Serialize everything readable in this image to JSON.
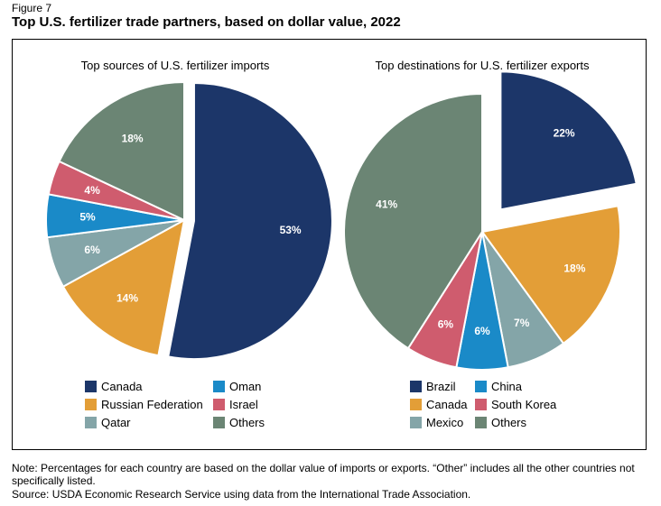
{
  "figure_label": "Figure 7",
  "title": "Top U.S. fertilizer trade partners, based on dollar value, 2022",
  "note": "Note: Percentages for each country are based on the dollar value of imports or exports. “Other” includes all the other countries not specifically listed.",
  "source": "Source: USDA Economic Research Service using data from the International Trade Association.",
  "chart_data": [
    {
      "type": "pie",
      "title": "Top sources of U.S. fertilizer imports",
      "slices": [
        {
          "label": "Canada",
          "value": 53,
          "display": "53%",
          "color": "#1c3669",
          "exploded": true
        },
        {
          "label": "Russian Federation",
          "value": 14,
          "display": "14%",
          "color": "#e39e37",
          "exploded": false
        },
        {
          "label": "Qatar",
          "value": 6,
          "display": "6%",
          "color": "#84a5a8",
          "exploded": false
        },
        {
          "label": "Oman",
          "value": 5,
          "display": "5%",
          "color": "#1a8ac8",
          "exploded": false
        },
        {
          "label": "Israel",
          "value": 4,
          "display": "4%",
          "color": "#cf5c6e",
          "exploded": false
        },
        {
          "label": "Others",
          "value": 18,
          "display": "18%",
          "color": "#6b8574",
          "exploded": false
        }
      ],
      "legend": [
        "Canada",
        "Oman",
        "Russian Federation",
        "Israel",
        "Qatar",
        "Others"
      ]
    },
    {
      "type": "pie",
      "title": "Top destinations for U.S. fertilizer exports",
      "slices": [
        {
          "label": "Brazil",
          "value": 22,
          "display": "22%",
          "color": "#1c3669",
          "exploded": true
        },
        {
          "label": "Canada",
          "value": 18,
          "display": "18%",
          "color": "#e39e37",
          "exploded": false
        },
        {
          "label": "Mexico",
          "value": 7,
          "display": "7%",
          "color": "#84a5a8",
          "exploded": false
        },
        {
          "label": "China",
          "value": 6,
          "display": "6%",
          "color": "#1a8ac8",
          "exploded": false
        },
        {
          "label": "South Korea",
          "value": 6,
          "display": "6%",
          "color": "#cf5c6e",
          "exploded": false
        },
        {
          "label": "Others",
          "value": 41,
          "display": "41%",
          "color": "#6b8574",
          "exploded": false
        }
      ],
      "legend": [
        "Brazil",
        "China",
        "Canada",
        "South Korea",
        "Mexico",
        "Others"
      ]
    }
  ]
}
